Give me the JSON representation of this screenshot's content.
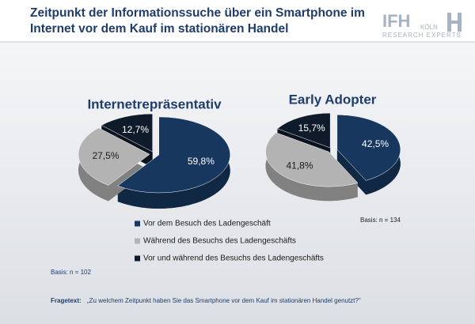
{
  "header": {
    "title_lines": [
      "Zeitpunkt der Informationssuche über ein Smartphone im",
      "Internet vor dem Kauf im stationären Handel"
    ]
  },
  "logo": {
    "name": "IFH",
    "city": "KÖLN",
    "tagline": "RESEARCH EXPERTS"
  },
  "chart_data": [
    {
      "type": "pie",
      "title": "Internetrepräsentativ",
      "categories": [
        "Vor dem Besuch des Ladengeschäft",
        "Während des Besuchs des Ladengeschäfts",
        "Vor und während des Besuchs des Ladengeschäfts"
      ],
      "values": [
        59.8,
        27.5,
        12.7
      ],
      "value_labels": [
        "59,8%",
        "27,5%",
        "12,7%"
      ],
      "colors": [
        "#17375e",
        "#b3b3b3",
        "#0f1b2b"
      ],
      "basis": "Basis: n = 102"
    },
    {
      "type": "pie",
      "title": "Early Adopter",
      "values": [
        42.5,
        41.8,
        15.7
      ],
      "value_labels": [
        "42,5%",
        "41,8%",
        "15,7%"
      ],
      "colors": [
        "#17375e",
        "#b3b3b3",
        "#0f1b2b"
      ],
      "basis": "Basis: n = 134"
    }
  ],
  "footer": {
    "label": "Fragetext:",
    "text": "„Zu welchem Zeitpunkt haben Sie das Smartphone vor dem Kauf im stationären Handel genutzt?\""
  }
}
